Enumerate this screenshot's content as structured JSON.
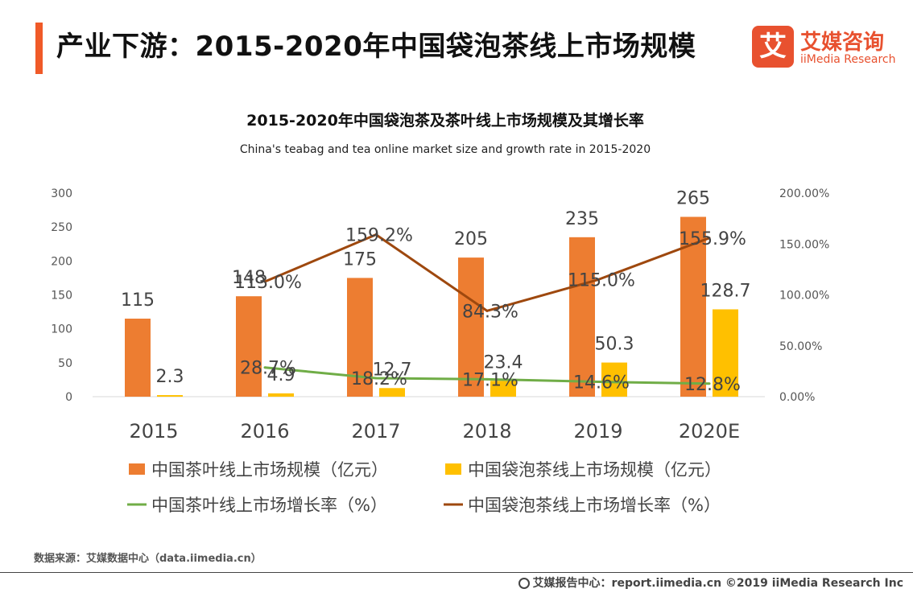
{
  "header": {
    "title": "产业下游：2015-2020年中国袋泡茶线上市场规模",
    "brand_logo_char": "艾",
    "brand_cn": "艾媒咨询",
    "brand_en": "iiMedia Research"
  },
  "chart_data": {
    "type": "bar",
    "title": "2015-2020年中国袋泡茶及茶叶线上市场规模及其增长率",
    "subtitle": "China's teabag  and tea online market size and growth rate in 2015-2020",
    "categories": [
      "2015",
      "2016",
      "2017",
      "2018",
      "2019",
      "2020E"
    ],
    "ylim_left": [
      0,
      300
    ],
    "yticks_left": [
      "300",
      "250",
      "200",
      "150",
      "100",
      "50",
      "0"
    ],
    "ylim_right": [
      0,
      200
    ],
    "yticks_right": [
      "200.00%",
      "150.00%",
      "100.00%",
      "50.00%",
      "0.00%"
    ],
    "bar_series": [
      {
        "name": "中国茶叶线上市场规模（亿元）",
        "color": "#ed7d31",
        "values": [
          115,
          148,
          175,
          205,
          235,
          265
        ],
        "labels": [
          "115",
          "148",
          "175",
          "205",
          "235",
          "265"
        ]
      },
      {
        "name": "中国袋泡茶线上市场规模（亿元）",
        "color": "#ffc000",
        "values": [
          2.3,
          4.9,
          12.7,
          23.4,
          50.3,
          128.7
        ],
        "labels": [
          "2.3",
          "4.9",
          "12.7",
          "23.4",
          "50.3",
          "128.7"
        ]
      }
    ],
    "line_series": [
      {
        "name": "中国茶叶线上市场增长率（%）",
        "color": "#70ad47",
        "values": [
          null,
          28.7,
          18.2,
          17.1,
          14.6,
          12.8
        ],
        "labels": [
          null,
          "28.7%",
          "18.2%",
          "17.1%",
          "14.6%",
          "12.8%"
        ]
      },
      {
        "name": "中国袋泡茶线上市场增长率（%）",
        "color": "#9e480e",
        "values": [
          null,
          113.0,
          159.2,
          84.3,
          115.0,
          155.9
        ],
        "labels": [
          null,
          "113.0%",
          "159.2%",
          "84.3%",
          "115.0%",
          "155.9%"
        ]
      }
    ],
    "legend_position": "bottom"
  },
  "footer": {
    "source": "数据来源：艾媒数据中心（data.iimedia.cn）",
    "report": "艾媒报告中心：report.iimedia.cn   ©2019  iiMedia Research  Inc"
  }
}
